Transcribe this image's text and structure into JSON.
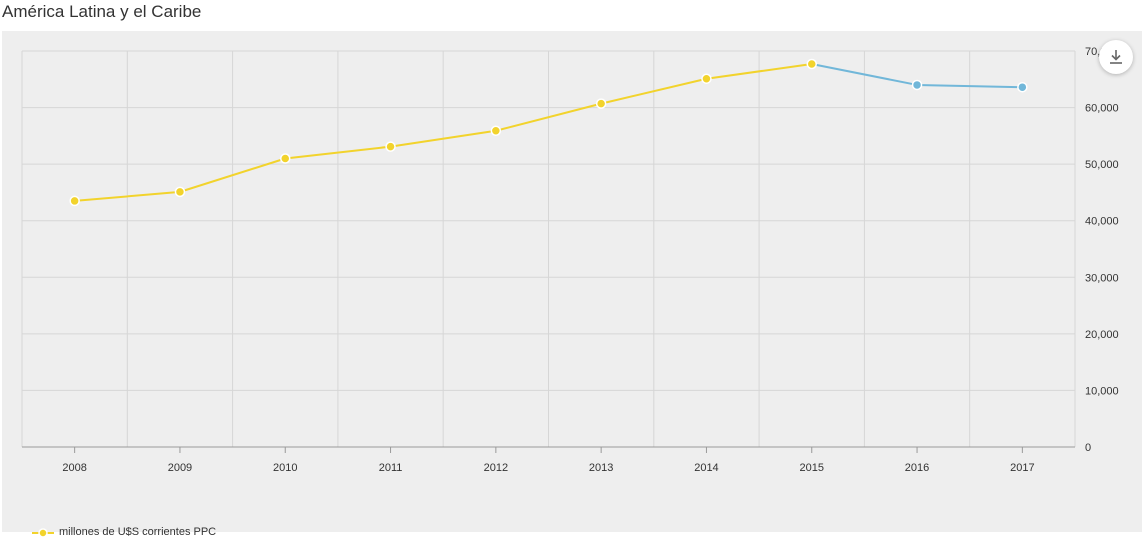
{
  "page": {
    "title": "América Latina y el Caribe"
  },
  "chart_data": {
    "type": "line",
    "title": "América Latina y el Caribe",
    "x": [
      "2008",
      "2009",
      "2010",
      "2011",
      "2012",
      "2013",
      "2014",
      "2015",
      "2016",
      "2017"
    ],
    "series": [
      {
        "name": "millones de U$S corrientes PPC",
        "values": [
          43500,
          45100,
          51000,
          53100,
          55900,
          60700,
          65100,
          67700,
          64000,
          63600
        ]
      }
    ],
    "segment_colors": [
      "#f2d32c",
      "#f2d32c",
      "#f2d32c",
      "#f2d32c",
      "#f2d32c",
      "#f2d32c",
      "#f2d32c",
      "#71b7d9",
      "#71b7d9"
    ],
    "point_colors": [
      "#f2d32c",
      "#f2d32c",
      "#f2d32c",
      "#f2d32c",
      "#f2d32c",
      "#f2d32c",
      "#f2d32c",
      "#f2d32c",
      "#71b7d9",
      "#71b7d9"
    ],
    "y_ticks": [
      "0",
      "10,000",
      "20,000",
      "30,000",
      "40,000",
      "50,000",
      "60,000",
      "70,000"
    ],
    "ylim": [
      0,
      70000
    ],
    "y_axis_side": "right",
    "grid": true,
    "legend_position": "bottom-left"
  },
  "legend": {
    "label": "millones de U$S corrientes PPC",
    "color": "#f2d32c"
  },
  "toolbar": {
    "download_icon": "download-icon"
  },
  "colors": {
    "background": "#eeeeee",
    "grid": "#d6d6d6",
    "axis": "#999999",
    "text": "#333333"
  }
}
